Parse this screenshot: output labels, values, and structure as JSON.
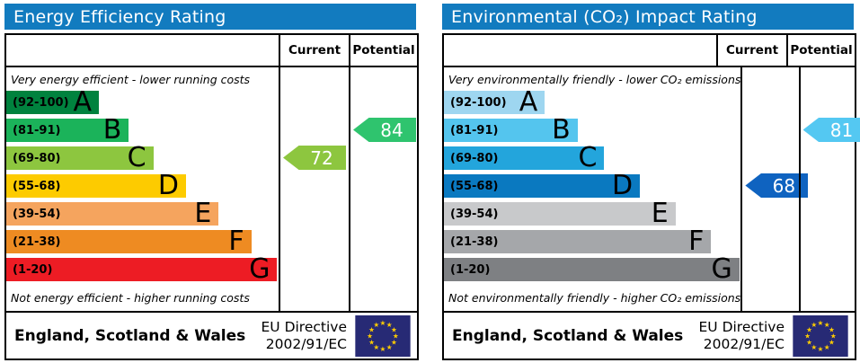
{
  "colors": {
    "header_bg": "#127bbf",
    "header_text": "#ffffff",
    "border": "#000000",
    "flag_bg": "#272a75",
    "flag_star": "#ffcc00",
    "arrow_text": "#ffffff"
  },
  "chart_data": [
    {
      "type": "bar",
      "id": "energy-efficiency",
      "title": "Energy Efficiency Rating",
      "columns": [
        "Current",
        "Potential"
      ],
      "top_caption": "Very energy efficient - lower running costs",
      "bottom_caption": "Not energy efficient - higher running costs",
      "bands": [
        {
          "letter": "A",
          "range": "(92-100)",
          "min": 92,
          "max": 100,
          "color": "#00823e",
          "width_pct": 34
        },
        {
          "letter": "B",
          "range": "(81-91)",
          "min": 81,
          "max": 91,
          "color": "#1bb35a",
          "width_pct": 45
        },
        {
          "letter": "C",
          "range": "(69-80)",
          "min": 69,
          "max": 80,
          "color": "#8dc63f",
          "width_pct": 54
        },
        {
          "letter": "D",
          "range": "(55-68)",
          "min": 55,
          "max": 68,
          "color": "#fdcb00",
          "width_pct": 66
        },
        {
          "letter": "E",
          "range": "(39-54)",
          "min": 39,
          "max": 54,
          "color": "#f5a45e",
          "width_pct": 78
        },
        {
          "letter": "F",
          "range": "(21-38)",
          "min": 21,
          "max": 38,
          "color": "#ee8b22",
          "width_pct": 90
        },
        {
          "letter": "G",
          "range": "(1-20)",
          "min": 1,
          "max": 20,
          "color": "#ed1c24",
          "width_pct": 99.5
        }
      ],
      "current": {
        "label": "72",
        "value": 72,
        "band": "C",
        "band_index": 2,
        "color": "#8dc63f"
      },
      "potential": {
        "label": "84",
        "value": 84,
        "band": "B",
        "band_index": 1,
        "color": "#2fc46e"
      },
      "footer": {
        "region": "England, Scotland & Wales",
        "directive_line1": "EU Directive",
        "directive_line2": "2002/91/EC"
      }
    },
    {
      "type": "bar",
      "id": "environmental-co2-impact",
      "title": "Environmental (CO₂) Impact Rating",
      "columns": [
        "Current",
        "Potential"
      ],
      "top_caption": "Very environmentally friendly - lower CO₂ emissions",
      "bottom_caption": "Not environmentally friendly - higher CO₂ emissions",
      "bands": [
        {
          "letter": "A",
          "range": "(92-100)",
          "min": 92,
          "max": 100,
          "color": "#9ed6f0",
          "width_pct": 34
        },
        {
          "letter": "B",
          "range": "(81-91)",
          "min": 81,
          "max": 91,
          "color": "#54c5ee",
          "width_pct": 45
        },
        {
          "letter": "C",
          "range": "(69-80)",
          "min": 69,
          "max": 80,
          "color": "#23a5dc",
          "width_pct": 54
        },
        {
          "letter": "D",
          "range": "(55-68)",
          "min": 55,
          "max": 68,
          "color": "#0a79c0",
          "width_pct": 66
        },
        {
          "letter": "E",
          "range": "(39-54)",
          "min": 39,
          "max": 54,
          "color": "#c8c9cb",
          "width_pct": 78
        },
        {
          "letter": "F",
          "range": "(21-38)",
          "min": 21,
          "max": 38,
          "color": "#a5a7aa",
          "width_pct": 90
        },
        {
          "letter": "G",
          "range": "(1-20)",
          "min": 1,
          "max": 20,
          "color": "#7e8083",
          "width_pct": 99.5
        }
      ],
      "current": {
        "label": "68",
        "value": 68,
        "band": "D",
        "band_index": 3,
        "color": "#0f63c0"
      },
      "potential": {
        "label": "81",
        "value": 81,
        "band": "B",
        "band_index": 1,
        "color": "#54c8f2"
      },
      "footer": {
        "region": "England, Scotland & Wales",
        "directive_line1": "EU Directive",
        "directive_line2": "2002/91/EC"
      }
    }
  ]
}
